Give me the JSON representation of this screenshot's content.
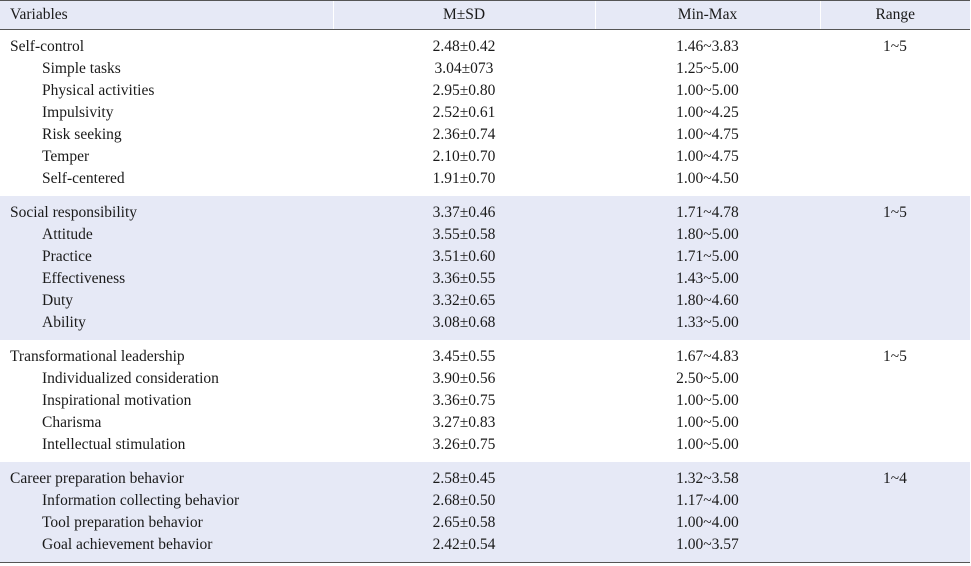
{
  "headers": [
    "Variables",
    "M±SD",
    "Min-Max",
    "Range"
  ],
  "groups": [
    {
      "name": "Self-control",
      "msd": "2.48±0.42",
      "minmax": "1.46~3.83",
      "range": "1~5",
      "items": [
        {
          "name": "Simple tasks",
          "msd": "3.04±073",
          "minmax": "1.25~5.00"
        },
        {
          "name": "Physical activities",
          "msd": "2.95±0.80",
          "minmax": "1.00~5.00"
        },
        {
          "name": "Impulsivity",
          "msd": "2.52±0.61",
          "minmax": "1.00~4.25"
        },
        {
          "name": "Risk seeking",
          "msd": "2.36±0.74",
          "minmax": "1.00~4.75"
        },
        {
          "name": "Temper",
          "msd": "2.10±0.70",
          "minmax": "1.00~4.75"
        },
        {
          "name": "Self-centered",
          "msd": "1.91±0.70",
          "minmax": "1.00~4.50"
        }
      ]
    },
    {
      "name": "Social responsibility",
      "msd": "3.37±0.46",
      "minmax": "1.71~4.78",
      "range": "1~5",
      "items": [
        {
          "name": "Attitude",
          "msd": "3.55±0.58",
          "minmax": "1.80~5.00"
        },
        {
          "name": "Practice",
          "msd": "3.51±0.60",
          "minmax": "1.71~5.00"
        },
        {
          "name": "Effectiveness",
          "msd": "3.36±0.55",
          "minmax": "1.43~5.00"
        },
        {
          "name": "Duty",
          "msd": "3.32±0.65",
          "minmax": "1.80~4.60"
        },
        {
          "name": "Ability",
          "msd": "3.08±0.68",
          "minmax": "1.33~5.00"
        }
      ]
    },
    {
      "name": "Transformational leadership",
      "msd": "3.45±0.55",
      "minmax": "1.67~4.83",
      "range": "1~5",
      "items": [
        {
          "name": "Individualized consideration",
          "msd": "3.90±0.56",
          "minmax": "2.50~5.00"
        },
        {
          "name": "Inspirational motivation",
          "msd": "3.36±0.75",
          "minmax": "1.00~5.00"
        },
        {
          "name": "Charisma",
          "msd": "3.27±0.83",
          "minmax": "1.00~5.00"
        },
        {
          "name": "Intellectual stimulation",
          "msd": "3.26±0.75",
          "minmax": "1.00~5.00"
        }
      ]
    },
    {
      "name": "Career preparation behavior",
      "msd": "2.58±0.45",
      "minmax": "1.32~3.58",
      "range": "1~4",
      "items": [
        {
          "name": "Information collecting behavior",
          "msd": "2.68±0.50",
          "minmax": "1.17~4.00"
        },
        {
          "name": "Tool preparation behavior",
          "msd": "2.65±0.58",
          "minmax": "1.00~4.00"
        },
        {
          "name": "Goal achievement behavior",
          "msd": "2.42±0.54",
          "minmax": "1.00~3.57"
        }
      ]
    }
  ]
}
